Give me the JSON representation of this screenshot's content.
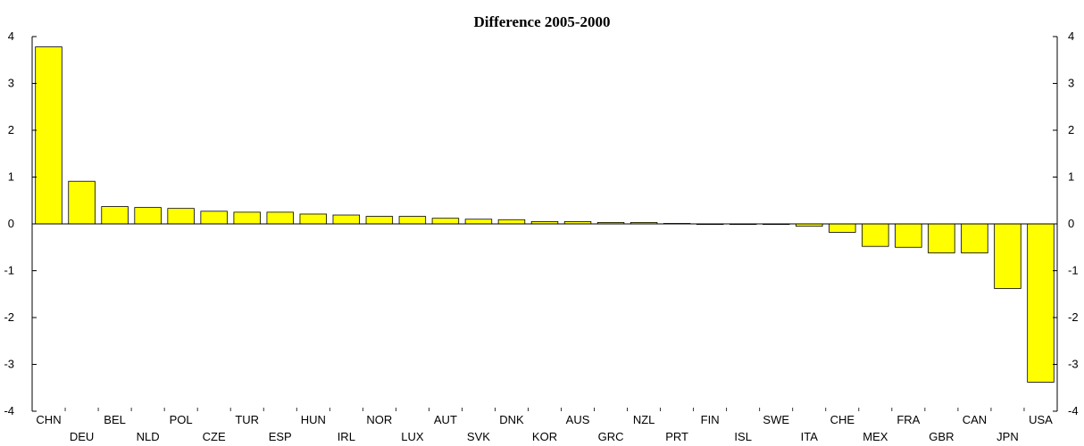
{
  "chart_data": {
    "type": "bar",
    "title": "Difference 2005-2000",
    "xlabel": "",
    "ylabel": "",
    "ylim": [
      -4,
      4
    ],
    "yticks": [
      4,
      3,
      2,
      1,
      0,
      -1,
      -2,
      -3,
      -4
    ],
    "grid": false,
    "bar_color": "#ffff00",
    "categories": [
      "CHN",
      "DEU",
      "BEL",
      "NLD",
      "POL",
      "CZE",
      "TUR",
      "ESP",
      "HUN",
      "IRL",
      "NOR",
      "LUX",
      "AUT",
      "SVK",
      "DNK",
      "KOR",
      "AUS",
      "GRC",
      "NZL",
      "PRT",
      "FIN",
      "ISL",
      "SWE",
      "ITA",
      "CHE",
      "MEX",
      "FRA",
      "GBR",
      "CAN",
      "JPN",
      "USA"
    ],
    "values": [
      3.78,
      0.91,
      0.37,
      0.35,
      0.33,
      0.27,
      0.25,
      0.25,
      0.21,
      0.19,
      0.16,
      0.16,
      0.12,
      0.1,
      0.09,
      0.05,
      0.05,
      0.03,
      0.03,
      0.01,
      0.0,
      0.0,
      0.0,
      -0.05,
      -0.18,
      -0.48,
      -0.5,
      -0.62,
      -0.62,
      -1.38,
      -3.38
    ]
  }
}
